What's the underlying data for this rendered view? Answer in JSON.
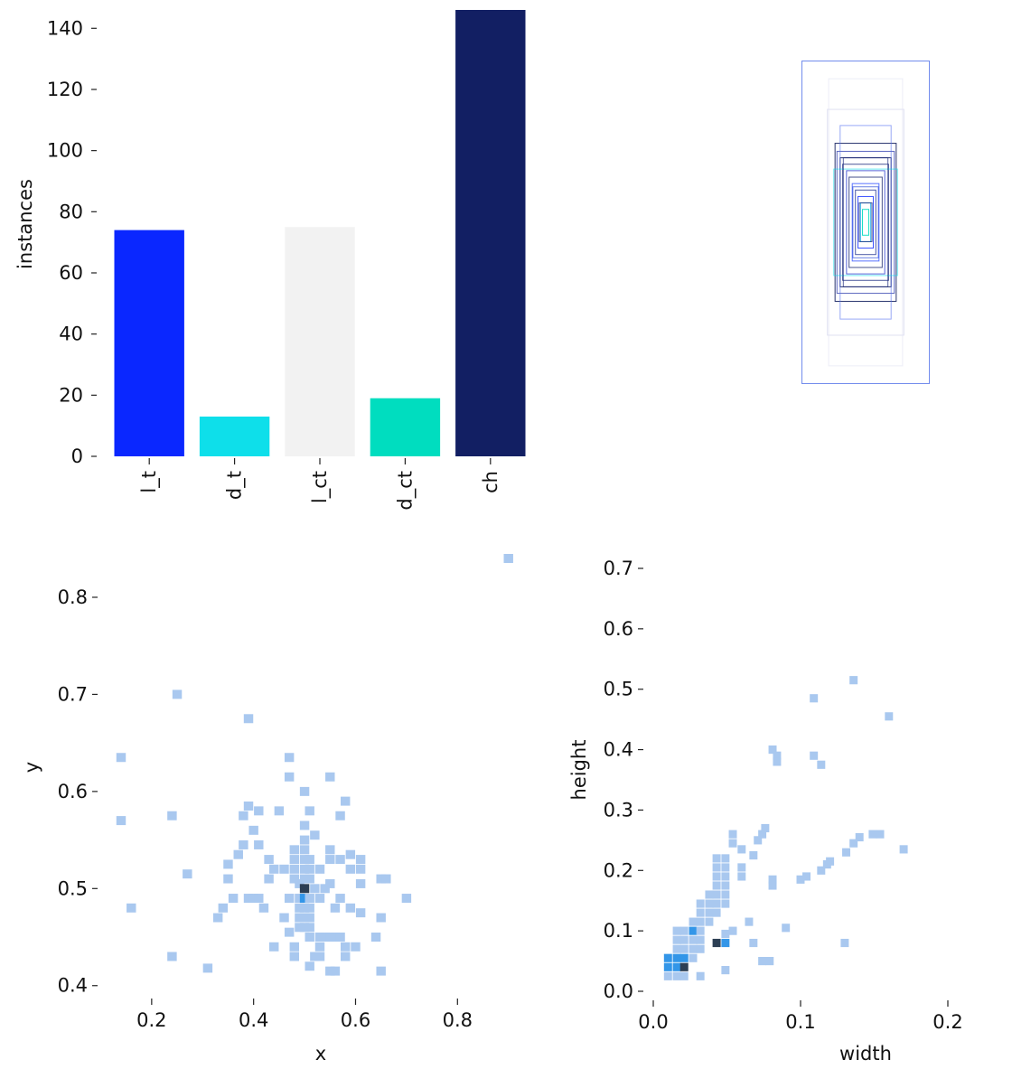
{
  "chart_data": [
    {
      "type": "bar",
      "ylabel": "instances",
      "xlabel": "",
      "ylim": [
        0,
        146
      ],
      "yticks": [
        0,
        20,
        40,
        60,
        80,
        100,
        120,
        140
      ],
      "categories": [
        "l_t",
        "d_t",
        "l_ct",
        "d_ct",
        "ch"
      ],
      "values": [
        74,
        13,
        75,
        19,
        146
      ],
      "colors": [
        "#0a27ff",
        "#0edfea",
        "#f2f2f2",
        "#00ddbf",
        "#121f63"
      ],
      "grid": false,
      "legend": "none"
    },
    {
      "type": "diagram",
      "description_key": "label-boxes",
      "boxes": [
        {
          "w": 1.0,
          "h": 1.0,
          "color": "#4f6fe8",
          "opacity": 0.8
        },
        {
          "w": 0.48,
          "h": 0.49,
          "color": "#14205f",
          "opacity": 0.9
        },
        {
          "w": 0.45,
          "h": 0.44,
          "color": "#3444b0",
          "opacity": 0.8
        },
        {
          "w": 0.4,
          "h": 0.4,
          "color": "#14205f",
          "opacity": 0.9
        },
        {
          "w": 0.36,
          "h": 0.36,
          "color": "#1c2c80",
          "opacity": 0.8
        },
        {
          "w": 0.3,
          "h": 0.32,
          "color": "#2a3fd0",
          "opacity": 0.8
        },
        {
          "w": 0.26,
          "h": 0.28,
          "color": "#1a2870",
          "opacity": 0.8
        },
        {
          "w": 0.21,
          "h": 0.24,
          "color": "#3050ff",
          "opacity": 0.8
        },
        {
          "w": 0.16,
          "h": 0.2,
          "color": "#1e2f90",
          "opacity": 0.8
        },
        {
          "w": 0.12,
          "h": 0.16,
          "color": "#0a27ff",
          "opacity": 0.8
        },
        {
          "w": 0.08,
          "h": 0.12,
          "color": "#0eaaea",
          "opacity": 0.8
        },
        {
          "w": 0.05,
          "h": 0.08,
          "color": "#00ddbf",
          "opacity": 0.9
        },
        {
          "w": 0.4,
          "h": 0.6,
          "color": "#5470f0",
          "opacity": 0.6
        },
        {
          "w": 0.5,
          "h": 0.33,
          "color": "#0edfea",
          "opacity": 0.6
        },
        {
          "w": 0.6,
          "h": 0.7,
          "color": "#c9cde8",
          "opacity": 0.6
        },
        {
          "w": 0.58,
          "h": 0.89,
          "color": "#e4e6f3",
          "opacity": 0.7
        },
        {
          "w": 0.35,
          "h": 0.4,
          "color": "#1b2a7a",
          "opacity": 0.7
        },
        {
          "w": 0.2,
          "h": 0.22,
          "color": "#2b4bd8",
          "opacity": 0.7
        },
        {
          "w": 0.1,
          "h": 0.12,
          "color": "#1b2a7a",
          "opacity": 0.8
        }
      ]
    },
    {
      "type": "heatmap",
      "xlabel": "x",
      "ylabel": "y",
      "xticks": [
        0.2,
        0.4,
        0.6,
        0.8
      ],
      "yticks": [
        0.4,
        0.5,
        0.6,
        0.7,
        0.8
      ],
      "xlim": [
        0.14,
        0.92
      ],
      "ylim": [
        0.41,
        0.84
      ],
      "bin_x": 0.0185,
      "bin_y": 0.0093,
      "cells": [
        [
          0.16,
          0.48,
          1
        ],
        [
          0.14,
          0.57,
          1
        ],
        [
          0.14,
          0.635,
          1
        ],
        [
          0.25,
          0.7,
          1
        ],
        [
          0.39,
          0.675,
          1
        ],
        [
          0.24,
          0.575,
          1
        ],
        [
          0.27,
          0.515,
          1
        ],
        [
          0.31,
          0.418,
          1
        ],
        [
          0.24,
          0.43,
          1
        ],
        [
          0.33,
          0.47,
          1
        ],
        [
          0.34,
          0.48,
          1
        ],
        [
          0.35,
          0.51,
          1
        ],
        [
          0.35,
          0.525,
          1
        ],
        [
          0.36,
          0.49,
          1
        ],
        [
          0.37,
          0.535,
          1
        ],
        [
          0.38,
          0.545,
          1
        ],
        [
          0.38,
          0.575,
          1
        ],
        [
          0.39,
          0.585,
          1
        ],
        [
          0.4,
          0.56,
          1
        ],
        [
          0.41,
          0.545,
          1
        ],
        [
          0.41,
          0.58,
          1
        ],
        [
          0.39,
          0.49,
          1
        ],
        [
          0.4,
          0.49,
          1
        ],
        [
          0.41,
          0.49,
          1
        ],
        [
          0.42,
          0.48,
          1
        ],
        [
          0.43,
          0.53,
          1
        ],
        [
          0.43,
          0.51,
          1
        ],
        [
          0.44,
          0.52,
          1
        ],
        [
          0.44,
          0.44,
          1
        ],
        [
          0.45,
          0.58,
          1
        ],
        [
          0.46,
          0.52,
          1
        ],
        [
          0.46,
          0.47,
          1
        ],
        [
          0.47,
          0.49,
          1
        ],
        [
          0.47,
          0.455,
          1
        ],
        [
          0.47,
          0.635,
          1
        ],
        [
          0.47,
          0.615,
          1
        ],
        [
          0.48,
          0.54,
          1
        ],
        [
          0.48,
          0.53,
          1
        ],
        [
          0.48,
          0.52,
          1
        ],
        [
          0.48,
          0.51,
          1
        ],
        [
          0.48,
          0.44,
          1
        ],
        [
          0.48,
          0.43,
          1
        ],
        [
          0.49,
          0.505,
          1
        ],
        [
          0.49,
          0.49,
          1
        ],
        [
          0.49,
          0.48,
          1
        ],
        [
          0.49,
          0.47,
          1
        ],
        [
          0.49,
          0.46,
          1
        ],
        [
          0.5,
          0.5,
          3
        ],
        [
          0.5,
          0.49,
          2
        ],
        [
          0.5,
          0.54,
          1
        ],
        [
          0.5,
          0.53,
          1
        ],
        [
          0.5,
          0.52,
          1
        ],
        [
          0.5,
          0.51,
          1
        ],
        [
          0.5,
          0.48,
          1
        ],
        [
          0.5,
          0.47,
          1
        ],
        [
          0.5,
          0.46,
          1
        ],
        [
          0.5,
          0.55,
          1
        ],
        [
          0.5,
          0.565,
          1
        ],
        [
          0.5,
          0.6,
          1
        ],
        [
          0.51,
          0.53,
          1
        ],
        [
          0.51,
          0.52,
          1
        ],
        [
          0.51,
          0.51,
          1
        ],
        [
          0.51,
          0.49,
          1
        ],
        [
          0.51,
          0.48,
          1
        ],
        [
          0.51,
          0.47,
          1
        ],
        [
          0.51,
          0.46,
          1
        ],
        [
          0.51,
          0.45,
          1
        ],
        [
          0.51,
          0.58,
          1
        ],
        [
          0.52,
          0.43,
          1
        ],
        [
          0.51,
          0.42,
          1
        ],
        [
          0.52,
          0.555,
          1
        ],
        [
          0.52,
          0.5,
          1
        ],
        [
          0.53,
          0.45,
          1
        ],
        [
          0.53,
          0.44,
          1
        ],
        [
          0.53,
          0.43,
          1
        ],
        [
          0.53,
          0.49,
          1
        ],
        [
          0.53,
          0.52,
          1
        ],
        [
          0.54,
          0.5,
          1
        ],
        [
          0.54,
          0.45,
          1
        ],
        [
          0.55,
          0.45,
          1
        ],
        [
          0.55,
          0.505,
          1
        ],
        [
          0.55,
          0.53,
          1
        ],
        [
          0.55,
          0.54,
          1
        ],
        [
          0.55,
          0.415,
          1
        ],
        [
          0.55,
          0.615,
          1
        ],
        [
          0.56,
          0.45,
          1
        ],
        [
          0.56,
          0.48,
          1
        ],
        [
          0.56,
          0.415,
          1
        ],
        [
          0.57,
          0.45,
          1
        ],
        [
          0.57,
          0.53,
          1
        ],
        [
          0.57,
          0.575,
          1
        ],
        [
          0.57,
          0.49,
          1
        ],
        [
          0.58,
          0.59,
          1
        ],
        [
          0.58,
          0.43,
          1
        ],
        [
          0.58,
          0.44,
          1
        ],
        [
          0.59,
          0.48,
          1
        ],
        [
          0.59,
          0.52,
          1
        ],
        [
          0.59,
          0.535,
          1
        ],
        [
          0.6,
          0.44,
          1
        ],
        [
          0.61,
          0.52,
          1
        ],
        [
          0.61,
          0.53,
          1
        ],
        [
          0.61,
          0.505,
          1
        ],
        [
          0.61,
          0.475,
          1
        ],
        [
          0.64,
          0.45,
          1
        ],
        [
          0.65,
          0.47,
          1
        ],
        [
          0.65,
          0.415,
          1
        ],
        [
          0.65,
          0.51,
          1
        ],
        [
          0.66,
          0.51,
          1
        ],
        [
          0.7,
          0.49,
          1
        ],
        [
          0.9,
          0.84,
          1
        ]
      ],
      "colors": [
        "#a9c8ef",
        "#3396e8",
        "#2d3f54"
      ],
      "grid": false
    },
    {
      "type": "heatmap",
      "xlabel": "width",
      "ylabel": "height",
      "xticks": [
        0.0,
        0.1,
        0.2
      ],
      "yticks": [
        0.0,
        0.1,
        0.2,
        0.3,
        0.4,
        0.5,
        0.6,
        0.7
      ],
      "xlim": [
        0.0,
        0.2
      ],
      "ylim": [
        0.0,
        0.7
      ],
      "bin_x": 0.0055,
      "bin_y": 0.0137,
      "cells": [
        [
          0.01,
          0.04,
          2
        ],
        [
          0.01,
          0.055,
          2
        ],
        [
          0.01,
          0.025,
          1
        ],
        [
          0.016,
          0.025,
          1
        ],
        [
          0.016,
          0.04,
          2
        ],
        [
          0.016,
          0.055,
          2
        ],
        [
          0.016,
          0.07,
          1
        ],
        [
          0.016,
          0.085,
          1
        ],
        [
          0.016,
          0.1,
          1
        ],
        [
          0.021,
          0.04,
          3
        ],
        [
          0.021,
          0.055,
          2
        ],
        [
          0.021,
          0.07,
          1
        ],
        [
          0.021,
          0.085,
          1
        ],
        [
          0.021,
          0.1,
          1
        ],
        [
          0.021,
          0.025,
          1
        ],
        [
          0.027,
          0.055,
          1
        ],
        [
          0.027,
          0.07,
          1
        ],
        [
          0.027,
          0.085,
          1
        ],
        [
          0.027,
          0.1,
          2
        ],
        [
          0.027,
          0.115,
          1
        ],
        [
          0.032,
          0.07,
          1
        ],
        [
          0.032,
          0.085,
          1
        ],
        [
          0.032,
          0.1,
          1
        ],
        [
          0.032,
          0.115,
          1
        ],
        [
          0.032,
          0.13,
          1
        ],
        [
          0.032,
          0.145,
          1
        ],
        [
          0.032,
          0.025,
          1
        ],
        [
          0.038,
          0.115,
          1
        ],
        [
          0.038,
          0.13,
          1
        ],
        [
          0.038,
          0.145,
          1
        ],
        [
          0.038,
          0.16,
          1
        ],
        [
          0.043,
          0.08,
          3
        ],
        [
          0.043,
          0.13,
          1
        ],
        [
          0.043,
          0.145,
          1
        ],
        [
          0.043,
          0.16,
          1
        ],
        [
          0.043,
          0.175,
          1
        ],
        [
          0.043,
          0.19,
          1
        ],
        [
          0.043,
          0.205,
          1
        ],
        [
          0.043,
          0.22,
          1
        ],
        [
          0.049,
          0.08,
          2
        ],
        [
          0.049,
          0.145,
          1
        ],
        [
          0.049,
          0.16,
          1
        ],
        [
          0.049,
          0.175,
          1
        ],
        [
          0.049,
          0.19,
          1
        ],
        [
          0.049,
          0.205,
          1
        ],
        [
          0.049,
          0.22,
          1
        ],
        [
          0.049,
          0.095,
          1
        ],
        [
          0.049,
          0.035,
          1
        ],
        [
          0.054,
          0.1,
          1
        ],
        [
          0.054,
          0.26,
          1
        ],
        [
          0.054,
          0.245,
          1
        ],
        [
          0.06,
          0.235,
          1
        ],
        [
          0.06,
          0.19,
          1
        ],
        [
          0.06,
          0.205,
          1
        ],
        [
          0.065,
          0.115,
          1
        ],
        [
          0.068,
          0.08,
          1
        ],
        [
          0.068,
          0.225,
          1
        ],
        [
          0.071,
          0.25,
          1
        ],
        [
          0.074,
          0.26,
          1
        ],
        [
          0.074,
          0.05,
          1
        ],
        [
          0.076,
          0.27,
          1
        ],
        [
          0.079,
          0.05,
          1
        ],
        [
          0.081,
          0.4,
          1
        ],
        [
          0.084,
          0.39,
          1
        ],
        [
          0.084,
          0.38,
          1
        ],
        [
          0.081,
          0.175,
          1
        ],
        [
          0.081,
          0.185,
          1
        ],
        [
          0.09,
          0.105,
          1
        ],
        [
          0.1,
          0.185,
          1
        ],
        [
          0.104,
          0.19,
          1
        ],
        [
          0.109,
          0.485,
          1
        ],
        [
          0.109,
          0.39,
          1
        ],
        [
          0.114,
          0.375,
          1
        ],
        [
          0.114,
          0.2,
          1
        ],
        [
          0.118,
          0.21,
          1
        ],
        [
          0.12,
          0.215,
          1
        ],
        [
          0.13,
          0.08,
          1
        ],
        [
          0.131,
          0.23,
          1
        ],
        [
          0.136,
          0.245,
          1
        ],
        [
          0.136,
          0.515,
          1
        ],
        [
          0.14,
          0.255,
          1
        ],
        [
          0.149,
          0.26,
          1
        ],
        [
          0.154,
          0.26,
          1
        ],
        [
          0.16,
          0.455,
          1
        ],
        [
          0.17,
          0.235,
          1
        ]
      ],
      "colors": [
        "#a9c8ef",
        "#3396e8",
        "#2d3f54"
      ],
      "grid": false
    }
  ]
}
